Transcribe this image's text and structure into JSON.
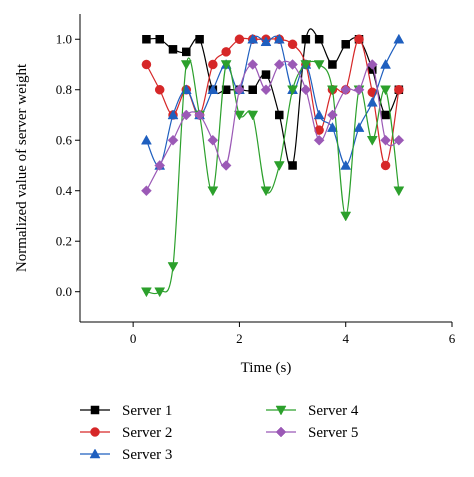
{
  "chart_data": {
    "type": "line",
    "xlabel": "Time (s)",
    "ylabel": "Normalized value of server weight",
    "xlim": [
      -1,
      6
    ],
    "ylim": [
      -0.12,
      1.1
    ],
    "xticks": [
      0,
      2,
      4,
      6
    ],
    "yticks": [
      0.0,
      0.2,
      0.4,
      0.6,
      0.8,
      1.0
    ],
    "xtick_labels": [
      "0",
      "2",
      "4",
      "6"
    ],
    "ytick_labels": [
      "0.0",
      "0.2",
      "0.4",
      "0.6",
      "0.8",
      "1.0"
    ],
    "x": [
      0.25,
      0.5,
      0.75,
      1.0,
      1.25,
      1.5,
      1.75,
      2.0,
      2.25,
      2.5,
      2.75,
      3.0,
      3.25,
      3.5,
      3.75,
      4.0,
      4.25,
      4.5,
      4.75,
      5.0
    ],
    "grid": false,
    "legend_position": "bottom",
    "series": [
      {
        "name": "Server 1",
        "color": "#000000",
        "marker": "square",
        "values": [
          1.0,
          1.0,
          0.96,
          0.95,
          1.0,
          0.8,
          0.8,
          0.8,
          0.8,
          0.86,
          0.7,
          0.5,
          1.0,
          1.0,
          0.9,
          0.98,
          1.0,
          0.88,
          0.7,
          0.8
        ]
      },
      {
        "name": "Server 2",
        "color": "#d62728",
        "marker": "circle",
        "values": [
          0.9,
          0.8,
          0.7,
          0.8,
          0.7,
          0.9,
          0.95,
          1.0,
          1.0,
          1.0,
          1.0,
          0.98,
          0.9,
          0.64,
          0.8,
          0.8,
          1.0,
          0.79,
          0.5,
          0.8
        ]
      },
      {
        "name": "Server 3",
        "color": "#1f5fbf",
        "marker": "triangle-up",
        "values": [
          0.6,
          0.5,
          0.7,
          0.8,
          0.7,
          0.8,
          0.9,
          0.8,
          1.0,
          0.99,
          1.0,
          0.8,
          0.9,
          0.7,
          0.65,
          0.5,
          0.65,
          0.75,
          0.9,
          1.0
        ]
      },
      {
        "name": "Server 4",
        "color": "#2ca02c",
        "marker": "triangle-down",
        "values": [
          0.0,
          0.0,
          0.1,
          0.9,
          0.7,
          0.4,
          0.9,
          0.7,
          0.7,
          0.4,
          0.5,
          0.8,
          0.9,
          0.9,
          0.8,
          0.3,
          0.8,
          0.6,
          0.8,
          0.4
        ]
      },
      {
        "name": "Server 5",
        "color": "#9b59b6",
        "marker": "diamond",
        "values": [
          0.4,
          0.5,
          0.6,
          0.7,
          0.7,
          0.6,
          0.5,
          0.8,
          0.9,
          0.8,
          0.9,
          0.9,
          0.8,
          0.6,
          0.7,
          0.8,
          0.8,
          0.9,
          0.6,
          0.6
        ]
      }
    ]
  }
}
